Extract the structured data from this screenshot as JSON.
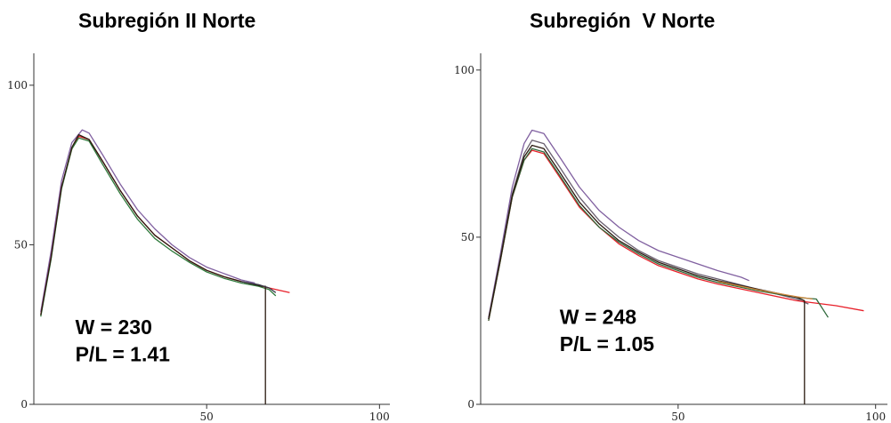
{
  "chart_data": [
    {
      "type": "line",
      "title": "Subregión II Norte",
      "xlabel": "",
      "ylabel": "",
      "xlim": [
        0,
        103
      ],
      "ylim": [
        0,
        110
      ],
      "x_ticks": [
        {
          "v": 50,
          "label": "50"
        },
        {
          "v": 100,
          "label": "100"
        }
      ],
      "y_ticks": [
        {
          "v": 0,
          "label": "0"
        },
        {
          "v": 50,
          "label": "50"
        },
        {
          "v": 100,
          "label": "100"
        }
      ],
      "grid": false,
      "legend": "none",
      "annotations": [
        {
          "text": "W = 230",
          "x": 12,
          "y": 22
        },
        {
          "text": "P/L = 1.41",
          "x": 12,
          "y": 13.5
        }
      ],
      "series": [
        {
          "color": "#8060a0",
          "points": [
            [
              2,
              29
            ],
            [
              5,
              48
            ],
            [
              8,
              70
            ],
            [
              11,
              82
            ],
            [
              14,
              86
            ],
            [
              16,
              85
            ],
            [
              20,
              78
            ],
            [
              25,
              69
            ],
            [
              30,
              61
            ],
            [
              35,
              55
            ],
            [
              40,
              50
            ],
            [
              45,
              46
            ],
            [
              50,
              43
            ],
            [
              55,
              41
            ],
            [
              60,
              39
            ],
            [
              64,
              38
            ]
          ]
        },
        {
          "color": "#e8202a",
          "points": [
            [
              2,
              28
            ],
            [
              5,
              46
            ],
            [
              8,
              68
            ],
            [
              11,
              80
            ],
            [
              13,
              84
            ],
            [
              16,
              83
            ],
            [
              20,
              76
            ],
            [
              25,
              67
            ],
            [
              30,
              59
            ],
            [
              35,
              53
            ],
            [
              40,
              49
            ],
            [
              45,
              45
            ],
            [
              50,
              42
            ],
            [
              55,
              40
            ],
            [
              60,
              38.5
            ],
            [
              66,
              37
            ],
            [
              70,
              36
            ],
            [
              74,
              35
            ]
          ]
        },
        {
          "color": "#2f7a3c",
          "points": [
            [
              2,
              27.5
            ],
            [
              5,
              45.5
            ],
            [
              8,
              67.5
            ],
            [
              11,
              80
            ],
            [
              13,
              83.5
            ],
            [
              16,
              82.5
            ],
            [
              20,
              75
            ],
            [
              25,
              66
            ],
            [
              30,
              58
            ],
            [
              35,
              52
            ],
            [
              40,
              48
            ],
            [
              45,
              44.5
            ],
            [
              50,
              41.5
            ],
            [
              55,
              39.5
            ],
            [
              60,
              38
            ],
            [
              65,
              37
            ],
            [
              68,
              36
            ],
            [
              70,
              34
            ]
          ]
        },
        {
          "color": "#2a1a10",
          "points": [
            [
              2,
              28
            ],
            [
              5,
              46
            ],
            [
              8,
              68
            ],
            [
              11,
              80.5
            ],
            [
              13,
              84.5
            ],
            [
              16,
              83
            ],
            [
              20,
              76
            ],
            [
              25,
              67
            ],
            [
              30,
              59
            ],
            [
              35,
              53
            ],
            [
              40,
              49
            ],
            [
              45,
              45
            ],
            [
              50,
              42
            ],
            [
              55,
              40
            ],
            [
              60,
              38.5
            ],
            [
              66,
              37
            ],
            [
              67,
              37
            ],
            [
              67,
              0
            ]
          ]
        },
        {
          "color": "#3a3a4a",
          "points": [
            [
              60,
              38.5
            ],
            [
              65,
              37.5
            ],
            [
              68,
              36.5
            ],
            [
              70,
              35
            ]
          ]
        }
      ]
    },
    {
      "type": "line",
      "title": "Subregión  V Norte",
      "xlabel": "",
      "ylabel": "",
      "xlim": [
        0,
        103
      ],
      "ylim": [
        0,
        105
      ],
      "x_ticks": [
        {
          "v": 50,
          "label": "50"
        },
        {
          "v": 100,
          "label": "100"
        }
      ],
      "y_ticks": [
        {
          "v": 0,
          "label": "0"
        },
        {
          "v": 50,
          "label": "50"
        },
        {
          "v": 100,
          "label": "100"
        }
      ],
      "grid": false,
      "legend": "none",
      "annotations": [
        {
          "text": "W = 248",
          "x": 20,
          "y": 24
        },
        {
          "text": "P/L = 1.05",
          "x": 20,
          "y": 16
        }
      ],
      "series": [
        {
          "color": "#8060a0",
          "points": [
            [
              2,
              26
            ],
            [
              5,
              45
            ],
            [
              8,
              65
            ],
            [
              11,
              78
            ],
            [
              13,
              82
            ],
            [
              16,
              81
            ],
            [
              20,
              74
            ],
            [
              25,
              65
            ],
            [
              30,
              58
            ],
            [
              35,
              53
            ],
            [
              40,
              49
            ],
            [
              45,
              46
            ],
            [
              50,
              44
            ],
            [
              55,
              42
            ],
            [
              60,
              40
            ],
            [
              66,
              38
            ],
            [
              68,
              37
            ]
          ]
        },
        {
          "color": "#6a6070",
          "points": [
            [
              2,
              25.5
            ],
            [
              5,
              44
            ],
            [
              8,
              63
            ],
            [
              11,
              75
            ],
            [
              13,
              79
            ],
            [
              16,
              78
            ],
            [
              20,
              71
            ],
            [
              25,
              62
            ],
            [
              30,
              55
            ],
            [
              35,
              50
            ],
            [
              40,
              46
            ],
            [
              45,
              43
            ],
            [
              50,
              41
            ],
            [
              55,
              39
            ],
            [
              60,
              37.5
            ],
            [
              65,
              36
            ],
            [
              70,
              34.5
            ],
            [
              75,
              33
            ],
            [
              80,
              31.5
            ],
            [
              83,
              30
            ]
          ]
        },
        {
          "color": "#e8202a",
          "points": [
            [
              2,
              25
            ],
            [
              5,
              43
            ],
            [
              8,
              62
            ],
            [
              11,
              73
            ],
            [
              13,
              76
            ],
            [
              16,
              75
            ],
            [
              20,
              68
            ],
            [
              25,
              59
            ],
            [
              30,
              53
            ],
            [
              35,
              48
            ],
            [
              40,
              44.5
            ],
            [
              45,
              41.5
            ],
            [
              50,
              39.5
            ],
            [
              55,
              37.5
            ],
            [
              60,
              36
            ],
            [
              70,
              33.5
            ],
            [
              80,
              31
            ],
            [
              90,
              29.5
            ],
            [
              97,
              28
            ]
          ]
        },
        {
          "color": "#2f6a3c",
          "points": [
            [
              2,
              25
            ],
            [
              5,
              43
            ],
            [
              8,
              62
            ],
            [
              11,
              73
            ],
            [
              13,
              76.5
            ],
            [
              16,
              75.5
            ],
            [
              20,
              68.5
            ],
            [
              25,
              59.5
            ],
            [
              30,
              53
            ],
            [
              35,
              48.5
            ],
            [
              40,
              45
            ],
            [
              45,
              42
            ],
            [
              50,
              40
            ],
            [
              55,
              38
            ],
            [
              60,
              36.5
            ],
            [
              70,
              34
            ],
            [
              80,
              32
            ],
            [
              85,
              31.5
            ],
            [
              88,
              26
            ]
          ]
        },
        {
          "color": "#2a1a10",
          "points": [
            [
              2,
              25.5
            ],
            [
              5,
              43.5
            ],
            [
              8,
              62.5
            ],
            [
              11,
              74
            ],
            [
              13,
              77.5
            ],
            [
              16,
              76.5
            ],
            [
              20,
              69.5
            ],
            [
              25,
              60.5
            ],
            [
              30,
              54
            ],
            [
              35,
              49
            ],
            [
              40,
              45.5
            ],
            [
              45,
              42.5
            ],
            [
              50,
              40.5
            ],
            [
              55,
              38.5
            ],
            [
              60,
              37
            ],
            [
              70,
              34.5
            ],
            [
              80,
              32
            ],
            [
              82,
              31
            ],
            [
              82,
              0
            ]
          ]
        },
        {
          "color": "#d08a40",
          "points": [
            [
              60,
              36.8
            ],
            [
              70,
              34.3
            ],
            [
              80,
              32.2
            ],
            [
              84,
              31.5
            ]
          ]
        }
      ]
    }
  ]
}
